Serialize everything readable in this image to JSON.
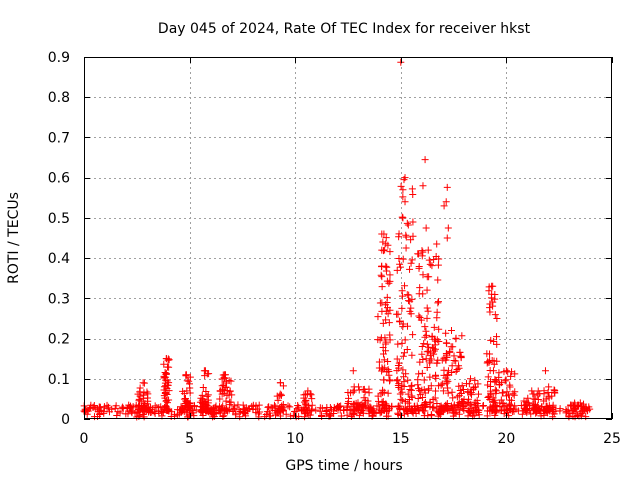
{
  "chart_data": {
    "type": "scatter",
    "title": "Day 045 of 2024, Rate Of TEC Index for receiver hkst",
    "xlabel": "GPS time / hours",
    "ylabel": "ROTI / TECUs",
    "xlim": [
      0,
      25
    ],
    "ylim": [
      0,
      0.9
    ],
    "grid": true,
    "marker": "+",
    "color": "#ff0000",
    "x_ticks": [
      0,
      5,
      10,
      15,
      20,
      25
    ],
    "x_tick_labels": [
      "0",
      "5",
      "10",
      "15",
      "20",
      "25"
    ],
    "y_ticks": [
      0,
      0.1,
      0.2,
      0.3,
      0.4,
      0.5,
      0.6,
      0.7,
      0.8,
      0.9
    ],
    "y_tick_labels": [
      "0",
      "0.1",
      "0.2",
      "0.3",
      "0.4",
      "0.5",
      "0.6",
      "0.7",
      "0.8",
      "0.9"
    ],
    "baseline": {
      "x_range": [
        0,
        24
      ],
      "y_range": [
        0.005,
        0.035
      ],
      "count": 520
    },
    "activity_clusters": [
      {
        "x_center": 2.8,
        "x_width": 0.25,
        "y_min": 0.02,
        "y_max": 0.09,
        "count": 35
      },
      {
        "x_center": 3.9,
        "x_width": 0.15,
        "y_min": 0.02,
        "y_max": 0.15,
        "count": 40
      },
      {
        "x_center": 4.85,
        "x_width": 0.2,
        "y_min": 0.02,
        "y_max": 0.11,
        "count": 35
      },
      {
        "x_center": 5.7,
        "x_width": 0.2,
        "y_min": 0.02,
        "y_max": 0.12,
        "count": 35
      },
      {
        "x_center": 6.7,
        "x_width": 0.3,
        "y_min": 0.02,
        "y_max": 0.11,
        "count": 35
      },
      {
        "x_center": 9.3,
        "x_width": 0.15,
        "y_min": 0.02,
        "y_max": 0.09,
        "count": 20
      },
      {
        "x_center": 10.6,
        "x_width": 0.2,
        "y_min": 0.02,
        "y_max": 0.07,
        "count": 20
      },
      {
        "x_center": 13.0,
        "x_width": 0.6,
        "y_min": 0.02,
        "y_max": 0.08,
        "count": 40
      },
      {
        "x_center": 14.2,
        "x_width": 0.3,
        "y_min": 0.02,
        "y_max": 0.46,
        "count": 80
      },
      {
        "x_center": 15.2,
        "x_width": 0.4,
        "y_min": 0.02,
        "y_max": 0.6,
        "count": 90
      },
      {
        "x_center": 16.3,
        "x_width": 0.5,
        "y_min": 0.02,
        "y_max": 0.42,
        "count": 110
      },
      {
        "x_center": 17.4,
        "x_width": 0.5,
        "y_min": 0.02,
        "y_max": 0.22,
        "count": 80
      },
      {
        "x_center": 18.3,
        "x_width": 0.4,
        "y_min": 0.02,
        "y_max": 0.1,
        "count": 40
      },
      {
        "x_center": 19.3,
        "x_width": 0.25,
        "y_min": 0.02,
        "y_max": 0.33,
        "count": 60
      },
      {
        "x_center": 20.0,
        "x_width": 0.4,
        "y_min": 0.02,
        "y_max": 0.12,
        "count": 40
      },
      {
        "x_center": 21.2,
        "x_width": 0.4,
        "y_min": 0.02,
        "y_max": 0.07,
        "count": 30
      },
      {
        "x_center": 22.0,
        "x_width": 0.3,
        "y_min": 0.02,
        "y_max": 0.08,
        "count": 25
      },
      {
        "x_center": 23.5,
        "x_width": 0.4,
        "y_min": 0.02,
        "y_max": 0.04,
        "count": 25
      }
    ],
    "notable_points": [
      {
        "x": 15.0,
        "y": 0.887
      },
      {
        "x": 16.15,
        "y": 0.645
      },
      {
        "x": 16.05,
        "y": 0.58
      },
      {
        "x": 17.2,
        "y": 0.576
      },
      {
        "x": 17.15,
        "y": 0.54
      },
      {
        "x": 17.05,
        "y": 0.53
      },
      {
        "x": 15.15,
        "y": 0.595
      },
      {
        "x": 15.1,
        "y": 0.57
      },
      {
        "x": 15.2,
        "y": 0.54
      },
      {
        "x": 15.1,
        "y": 0.5
      },
      {
        "x": 15.25,
        "y": 0.425
      },
      {
        "x": 16.2,
        "y": 0.475
      },
      {
        "x": 17.2,
        "y": 0.45
      },
      {
        "x": 17.25,
        "y": 0.475
      },
      {
        "x": 16.7,
        "y": 0.435
      },
      {
        "x": 14.1,
        "y": 0.46
      },
      {
        "x": 14.15,
        "y": 0.44
      },
      {
        "x": 14.1,
        "y": 0.42
      },
      {
        "x": 19.35,
        "y": 0.33
      },
      {
        "x": 19.3,
        "y": 0.31
      },
      {
        "x": 21.85,
        "y": 0.12
      },
      {
        "x": 12.75,
        "y": 0.12
      },
      {
        "x": 9.3,
        "y": 0.09
      },
      {
        "x": 3.9,
        "y": 0.15
      },
      {
        "x": 6.65,
        "y": 0.11
      },
      {
        "x": 5.75,
        "y": 0.12
      },
      {
        "x": 0.0,
        "y": 0.02
      },
      {
        "x": 23.9,
        "y": 0.03
      }
    ]
  }
}
